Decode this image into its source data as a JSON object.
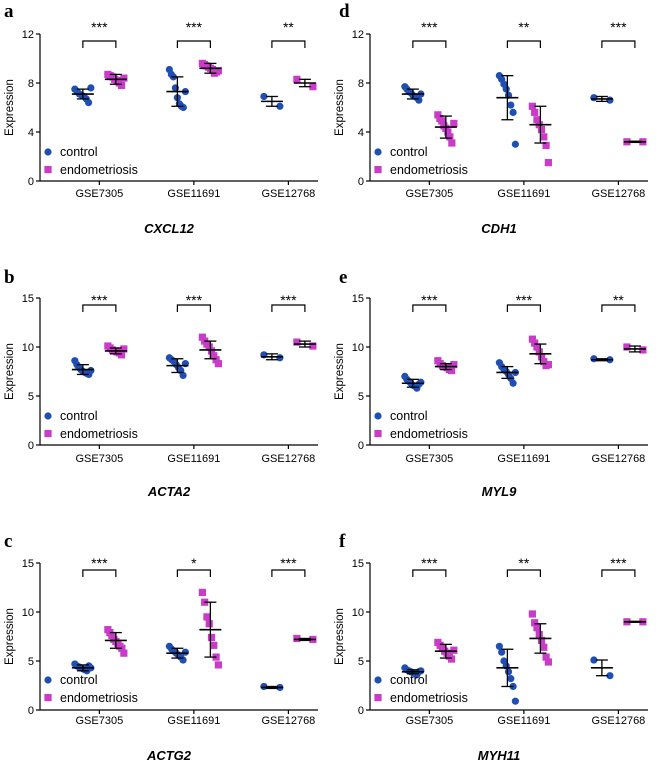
{
  "figure": {
    "legend": {
      "control": "control",
      "endometriosis": "endometriosis"
    },
    "colors": {
      "control": "#1f4fb3",
      "endometriosis": "#c83cc8",
      "axis": "#000000"
    }
  },
  "chart_data": [
    {
      "panel": "a",
      "gene": "CXCL12",
      "type": "scatter",
      "ylabel": "Expression",
      "ylim": [
        0,
        12
      ],
      "yticks": [
        0,
        4,
        8,
        12
      ],
      "categories": [
        "GSE7305",
        "GSE11691",
        "GSE12768"
      ],
      "significance": [
        "***",
        "***",
        "**"
      ],
      "groups": [
        {
          "control": {
            "mean": 7.1,
            "sd": 0.4,
            "points": [
              7.5,
              7.3,
              7.1,
              7.0,
              6.9,
              6.7,
              6.4,
              7.6
            ]
          },
          "endometriosis": {
            "mean": 8.3,
            "sd": 0.4,
            "points": [
              8.7,
              8.6,
              8.5,
              8.3,
              8.2,
              8.0,
              7.8,
              8.4
            ]
          }
        },
        {
          "control": {
            "mean": 7.3,
            "sd": 1.2,
            "points": [
              9.1,
              8.7,
              8.5,
              7.6,
              6.8,
              6.3,
              6.1,
              6.0,
              7.3
            ]
          },
          "endometriosis": {
            "mean": 9.2,
            "sd": 0.4,
            "points": [
              9.6,
              9.5,
              9.4,
              9.3,
              9.2,
              9.1,
              8.8,
              8.9,
              9.0
            ]
          }
        },
        {
          "control": {
            "mean": 6.5,
            "sd": 0.4,
            "points": [
              6.9,
              6.1
            ]
          },
          "endometriosis": {
            "mean": 8.0,
            "sd": 0.3,
            "points": [
              8.3,
              7.7
            ]
          }
        }
      ]
    },
    {
      "panel": "b",
      "gene": "ACTA2",
      "type": "scatter",
      "ylabel": "Expression",
      "ylim": [
        0,
        15
      ],
      "yticks": [
        0,
        5,
        10,
        15
      ],
      "categories": [
        "GSE7305",
        "GSE11691",
        "GSE12768"
      ],
      "significance": [
        "***",
        "***",
        "***"
      ],
      "groups": [
        {
          "control": {
            "mean": 7.7,
            "sd": 0.5,
            "points": [
              8.6,
              8.2,
              7.9,
              7.7,
              7.5,
              7.4,
              7.3,
              7.2,
              7.6
            ]
          },
          "endometriosis": {
            "mean": 9.6,
            "sd": 0.3,
            "points": [
              10.1,
              9.9,
              9.7,
              9.6,
              9.5,
              9.4,
              9.2,
              9.8
            ]
          }
        },
        {
          "control": {
            "mean": 8.1,
            "sd": 0.7,
            "points": [
              8.9,
              8.7,
              8.5,
              8.2,
              7.9,
              7.6,
              7.1,
              8.3
            ]
          },
          "endometriosis": {
            "mean": 9.7,
            "sd": 0.9,
            "points": [
              11.0,
              10.6,
              10.3,
              10.0,
              9.6,
              9.1,
              8.7,
              8.3
            ]
          }
        },
        {
          "control": {
            "mean": 9.0,
            "sd": 0.3,
            "points": [
              9.2,
              8.9
            ]
          },
          "endometriosis": {
            "mean": 10.3,
            "sd": 0.3,
            "points": [
              10.5,
              10.1
            ]
          }
        }
      ]
    },
    {
      "panel": "c",
      "gene": "ACTG2",
      "type": "scatter",
      "ylabel": "Expression",
      "ylim": [
        0,
        15
      ],
      "yticks": [
        0,
        5,
        10,
        15
      ],
      "categories": [
        "GSE7305",
        "GSE11691",
        "GSE12768"
      ],
      "significance": [
        "***",
        "*",
        "***"
      ],
      "groups": [
        {
          "control": {
            "mean": 4.3,
            "sd": 0.3,
            "points": [
              4.7,
              4.5,
              4.4,
              4.3,
              4.2,
              4.1,
              4.0,
              4.5,
              4.3
            ]
          },
          "endometriosis": {
            "mean": 7.1,
            "sd": 0.8,
            "points": [
              8.2,
              7.9,
              7.6,
              7.2,
              7.0,
              6.8,
              6.5,
              6.3,
              5.8
            ]
          }
        },
        {
          "control": {
            "mean": 5.8,
            "sd": 0.5,
            "points": [
              6.5,
              6.2,
              6.0,
              5.8,
              5.6,
              5.4,
              5.1,
              5.9
            ]
          },
          "endometriosis": {
            "mean": 8.2,
            "sd": 2.8,
            "points": [
              12.0,
              11.0,
              9.5,
              8.8,
              7.4,
              6.6,
              5.4,
              4.6
            ]
          }
        },
        {
          "control": {
            "mean": 2.3,
            "sd": 0.1,
            "points": [
              2.4,
              2.3
            ]
          },
          "endometriosis": {
            "mean": 7.2,
            "sd": 0.1,
            "points": [
              7.3,
              7.2
            ]
          }
        }
      ]
    },
    {
      "panel": "d",
      "gene": "CDH1",
      "type": "scatter",
      "ylabel": "Expression",
      "ylim": [
        0,
        12
      ],
      "yticks": [
        0,
        4,
        8,
        12
      ],
      "categories": [
        "GSE7305",
        "GSE11691",
        "GSE12768"
      ],
      "significance": [
        "***",
        "**",
        "***"
      ],
      "groups": [
        {
          "control": {
            "mean": 7.1,
            "sd": 0.4,
            "points": [
              7.7,
              7.5,
              7.3,
              7.2,
              7.0,
              6.9,
              6.8,
              6.6,
              7.1
            ]
          },
          "endometriosis": {
            "mean": 4.4,
            "sd": 0.9,
            "points": [
              5.4,
              5.1,
              4.9,
              4.5,
              4.3,
              4.0,
              3.6,
              3.1,
              4.7
            ]
          }
        },
        {
          "control": {
            "mean": 6.8,
            "sd": 1.8,
            "points": [
              8.6,
              8.3,
              7.9,
              7.5,
              7.0,
              6.2,
              5.6,
              3.0
            ]
          },
          "endometriosis": {
            "mean": 4.6,
            "sd": 1.5,
            "points": [
              6.1,
              5.6,
              5.0,
              4.6,
              4.2,
              3.6,
              2.9,
              1.5
            ]
          }
        },
        {
          "control": {
            "mean": 6.7,
            "sd": 0.2,
            "points": [
              6.8,
              6.6
            ]
          },
          "endometriosis": {
            "mean": 3.2,
            "sd": 0.05,
            "points": [
              3.2,
              3.2
            ]
          }
        }
      ]
    },
    {
      "panel": "e",
      "gene": "MYL9",
      "type": "scatter",
      "ylabel": "Expression",
      "ylim": [
        0,
        15
      ],
      "yticks": [
        0,
        5,
        10,
        15
      ],
      "categories": [
        "GSE7305",
        "GSE11691",
        "GSE12768"
      ],
      "significance": [
        "***",
        "***",
        "**"
      ],
      "groups": [
        {
          "control": {
            "mean": 6.3,
            "sd": 0.4,
            "points": [
              7.0,
              6.7,
              6.5,
              6.3,
              6.1,
              6.0,
              5.8,
              6.2,
              6.4
            ]
          },
          "endometriosis": {
            "mean": 8.0,
            "sd": 0.3,
            "points": [
              8.6,
              8.3,
              8.1,
              8.0,
              7.9,
              7.7,
              7.6,
              8.2
            ]
          }
        },
        {
          "control": {
            "mean": 7.4,
            "sd": 0.6,
            "points": [
              8.4,
              8.0,
              7.7,
              7.5,
              7.2,
              6.8,
              6.3,
              7.4
            ]
          },
          "endometriosis": {
            "mean": 9.3,
            "sd": 1.0,
            "points": [
              10.8,
              10.4,
              10.0,
              9.5,
              9.0,
              8.5,
              8.1,
              8.2
            ]
          }
        },
        {
          "control": {
            "mean": 8.7,
            "sd": 0.1,
            "points": [
              8.8,
              8.7
            ]
          },
          "endometriosis": {
            "mean": 9.8,
            "sd": 0.3,
            "points": [
              10.0,
              9.7
            ]
          }
        }
      ]
    },
    {
      "panel": "f",
      "gene": "MYH11",
      "type": "scatter",
      "ylabel": "Expression",
      "ylim": [
        0,
        15
      ],
      "yticks": [
        0,
        5,
        10,
        15
      ],
      "categories": [
        "GSE7305",
        "GSE11691",
        "GSE12768"
      ],
      "significance": [
        "***",
        "**",
        "***"
      ],
      "groups": [
        {
          "control": {
            "mean": 3.9,
            "sd": 0.2,
            "points": [
              4.3,
              4.1,
              4.0,
              3.9,
              3.8,
              3.7,
              3.6,
              3.9,
              4.0
            ]
          },
          "endometriosis": {
            "mean": 6.0,
            "sd": 0.7,
            "points": [
              6.9,
              6.6,
              6.3,
              6.0,
              5.8,
              5.5,
              5.2,
              6.1
            ]
          }
        },
        {
          "control": {
            "mean": 4.3,
            "sd": 1.9,
            "points": [
              6.5,
              5.9,
              5.0,
              4.5,
              3.9,
              3.2,
              2.4,
              0.9
            ]
          },
          "endometriosis": {
            "mean": 7.3,
            "sd": 1.5,
            "points": [
              9.8,
              8.9,
              8.4,
              7.7,
              7.1,
              6.4,
              5.4,
              4.9
            ]
          }
        },
        {
          "control": {
            "mean": 4.3,
            "sd": 0.8,
            "points": [
              5.1,
              3.5
            ]
          },
          "endometriosis": {
            "mean": 9.0,
            "sd": 0.05,
            "points": [
              9.0,
              9.0
            ]
          }
        }
      ]
    }
  ]
}
